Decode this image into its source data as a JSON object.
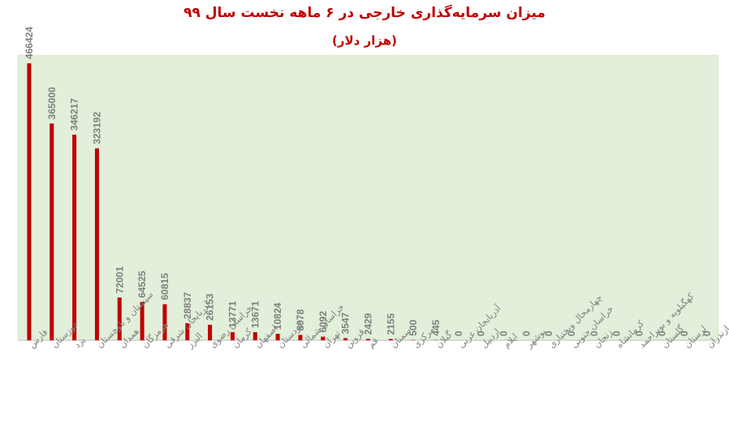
{
  "title": "میزان سرمایه‌گذاری خارجی در ۶ ماهه نخست سال ۹۹",
  "subtitle": "(هزار دلار)",
  "colors": {
    "bar": "#c00000",
    "plot_background": "#e2efda",
    "value_label": "#7f7f7f",
    "category_label": "#7f7f7f",
    "title": "#c00000"
  },
  "chart_data": {
    "type": "bar",
    "title": "میزان سرمایه‌گذاری خارجی در ۶ ماهه نخست سال ۹۹",
    "subtitle": "(هزار دلار)",
    "xlabel": "",
    "ylabel": "",
    "ylim": [
      0,
      480000
    ],
    "grid": false,
    "legend": "none",
    "categories": [
      "فارس",
      "خوزستان",
      "یزد",
      "سیستان و بلوچستان",
      "همدان",
      "هرمزگان",
      "آذربایجان شرقی",
      "البرز",
      "خراسان رضوی",
      "کرمان",
      "اصفهان",
      "کردستان",
      "خراسان شمالی",
      "تهران",
      "قزوین",
      "قم",
      "سمنان",
      "مرکزی",
      "گیلان",
      "آذربایجان غربی",
      "اردبیل",
      "ایلام",
      "بوشهر",
      "چهارمحال وبختیاری",
      "خراسان جنوبی",
      "زنجان",
      "کرمانشاه",
      "کهگیلویه و بویراحمد",
      "گلستان",
      "لرستان",
      "مازندران"
    ],
    "values": [
      466424,
      365000,
      346217,
      323192,
      72001,
      64525,
      60815,
      28837,
      26153,
      13771,
      13671,
      10824,
      8978,
      6092,
      3547,
      2429,
      2155,
      500,
      445,
      0,
      0,
      0,
      0,
      0,
      0,
      0,
      0,
      0,
      0,
      0,
      0
    ]
  }
}
